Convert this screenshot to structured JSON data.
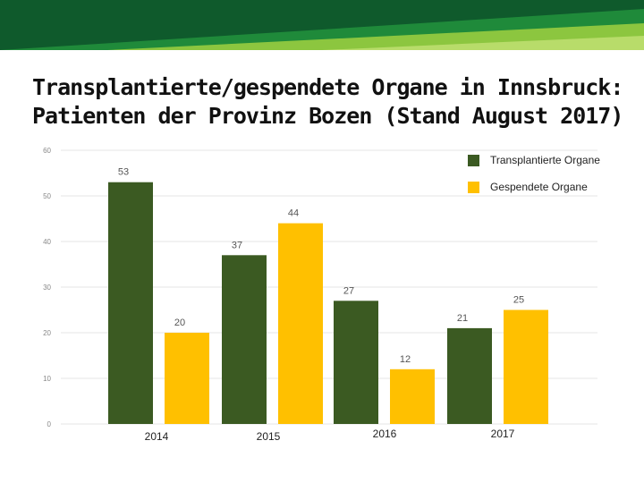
{
  "title_line1": "Transplantierte/gespendete Organe in Innsbruck:",
  "title_line2": "Patienten der Provinz Bozen (Stand August 2017)",
  "colors": {
    "transplant": "#3b5a22",
    "donated": "#ffc000",
    "grid": "#e6e6e6",
    "banner_dark": "#0f5a2c",
    "banner_light": "#8cc63f"
  },
  "chart_data": {
    "type": "bar",
    "categories": [
      "2014",
      "2015",
      "2016",
      "2017"
    ],
    "series": [
      {
        "name": "Transplantierte Organe",
        "values": [
          53,
          37,
          27,
          21
        ]
      },
      {
        "name": "Gespendete Organe",
        "values": [
          20,
          44,
          12,
          25
        ]
      }
    ],
    "ylim": [
      0,
      60
    ],
    "yticks": [
      0,
      10,
      20,
      30,
      40,
      50,
      60
    ],
    "grid": true,
    "legend": "top-right"
  }
}
